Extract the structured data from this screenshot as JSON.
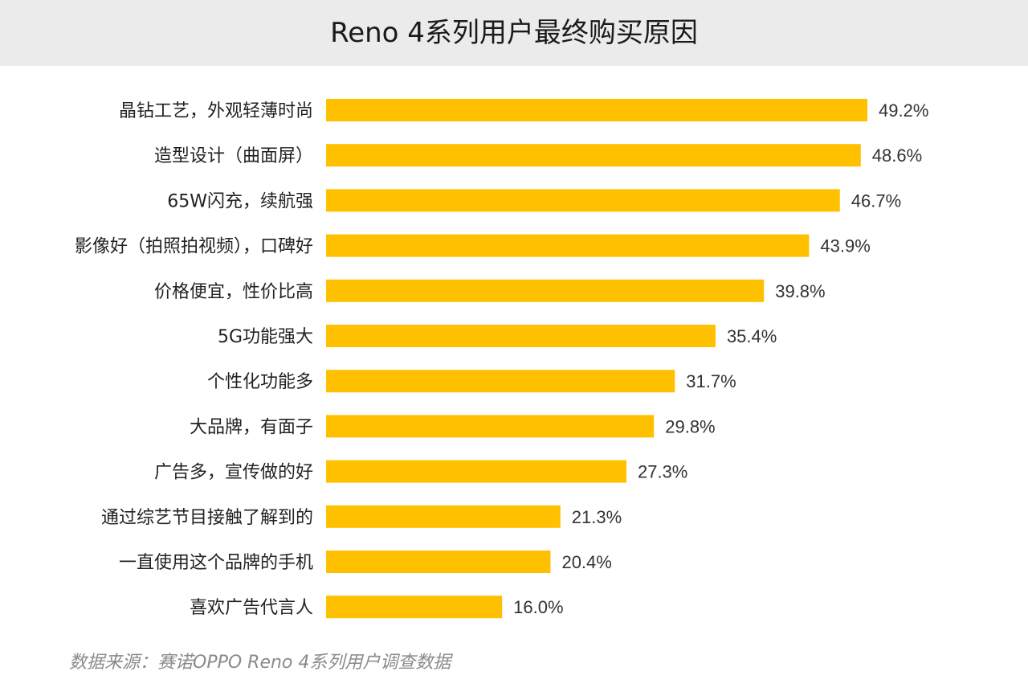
{
  "chart_data": {
    "type": "bar",
    "orientation": "horizontal",
    "title": "Reno 4系列用户最终购买原因",
    "categories": [
      "晶钻工艺，外观轻薄时尚",
      "造型设计（曲面屏）",
      "65W闪充，续航强",
      "影像好（拍照拍视频），口碑好",
      "价格便宜，性价比高",
      "5G功能强大",
      "个性化功能多",
      "大品牌，有面子",
      "广告多，宣传做的好",
      "通过综艺节目接触了解到的",
      "一直使用这个品牌的手机",
      "喜欢广告代言人"
    ],
    "values": [
      49.2,
      48.6,
      46.7,
      43.9,
      39.8,
      35.4,
      31.7,
      29.8,
      27.3,
      21.3,
      20.4,
      16.0
    ],
    "value_labels": [
      "49.2%",
      "48.6%",
      "46.7%",
      "43.9%",
      "39.8%",
      "35.4%",
      "31.7%",
      "29.8%",
      "27.3%",
      "21.3%",
      "20.4%",
      "16.0%"
    ],
    "xlim": [
      0,
      50
    ],
    "grid": false,
    "legend": "none",
    "bar_color": "#FFC000"
  },
  "source": "数据来源：赛诺OPPO Reno 4系列用户调查数据"
}
